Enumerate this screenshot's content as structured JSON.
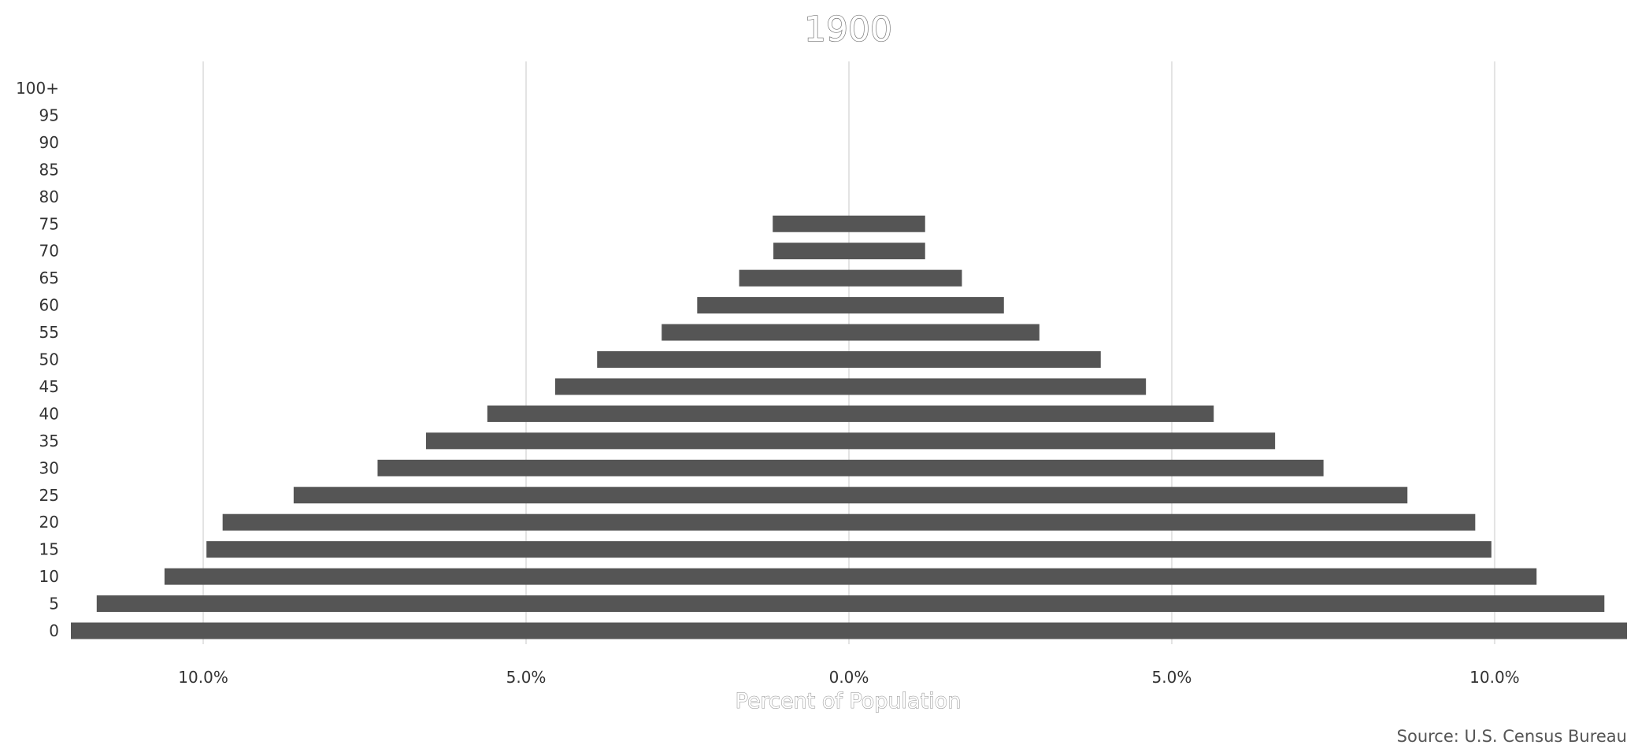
{
  "chart_data": {
    "type": "bar",
    "orientation": "horizontal",
    "style": "population-pyramid",
    "title": "1900",
    "xlabel": "Percent of Population",
    "ylabel": "",
    "source": "Source: U.S. Census Bureau",
    "grid": true,
    "legend": "none",
    "xlim": [
      -12.05,
      12.05
    ],
    "xticks": [
      -10,
      -5,
      0,
      5,
      10
    ],
    "xtick_labels": [
      "10.0%",
      "5.0%",
      "0.0%",
      "5.0%",
      "10.0%"
    ],
    "categories": [
      "0",
      "5",
      "10",
      "15",
      "20",
      "25",
      "30",
      "35",
      "40",
      "45",
      "50",
      "55",
      "60",
      "65",
      "70",
      "75",
      "80",
      "85",
      "90",
      "95",
      "100+"
    ],
    "series": [
      {
        "side": "left",
        "values": [
          12.05,
          11.65,
          10.6,
          9.95,
          9.7,
          8.6,
          7.3,
          6.55,
          5.6,
          4.55,
          3.9,
          2.9,
          2.35,
          1.7,
          1.17,
          1.18,
          0,
          0,
          0,
          0,
          0
        ]
      },
      {
        "side": "right",
        "values": [
          12.05,
          11.7,
          10.65,
          9.95,
          9.7,
          8.65,
          7.35,
          6.6,
          5.65,
          4.6,
          3.9,
          2.95,
          2.4,
          1.75,
          1.18,
          1.18,
          0,
          0,
          0,
          0,
          0
        ]
      }
    ],
    "colors": {
      "bar": "#555555",
      "grid": "#e3e3e3",
      "text": "#333333"
    }
  }
}
